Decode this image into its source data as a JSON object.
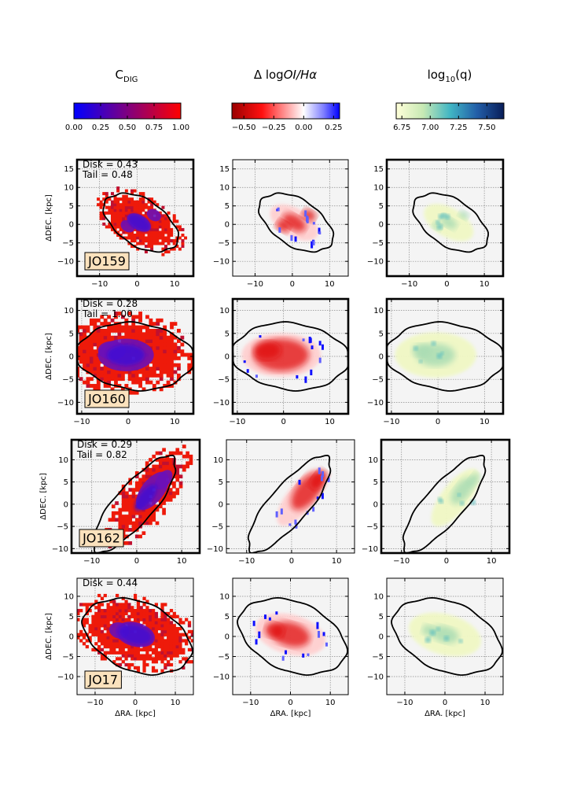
{
  "columns": [
    {
      "title_main": "C",
      "title_sub": "DIG",
      "cmap": "bluered",
      "colorbar_ticks": [
        "0.00",
        "0.25",
        "0.50",
        "0.75",
        "1.00"
      ],
      "colorbar_range": [
        0,
        1
      ],
      "tick_values": [
        0,
        0.25,
        0.5,
        0.75,
        1.0
      ]
    },
    {
      "title_main": "Δ log",
      "title_italic": "OI/Hα",
      "cmap": "redwhiteblue",
      "colorbar_ticks": [
        "−0.50",
        "−0.25",
        "0.00",
        "0.25"
      ],
      "colorbar_range": [
        -0.6,
        0.3
      ],
      "tick_values": [
        -0.5,
        -0.25,
        0.0,
        0.25
      ]
    },
    {
      "title_main": "log",
      "title_sub": "10",
      "title_rest": "(q)",
      "cmap": "ylgnbu",
      "colorbar_ticks": [
        "6.75",
        "7.00",
        "7.25",
        "7.50"
      ],
      "colorbar_range": [
        6.7,
        7.65
      ],
      "tick_values": [
        6.75,
        7.0,
        7.25,
        7.5
      ]
    }
  ],
  "chart_data": [
    {
      "type": "heatmap",
      "galaxy": "JO159",
      "ylabel": "ΔDEC. [kpc]",
      "xlabel": "",
      "xlim": [
        -16,
        15
      ],
      "ylim": [
        -14,
        17.5
      ],
      "xticks": [
        -10,
        0,
        10
      ],
      "yticks": [
        -10,
        -5,
        0,
        5,
        10,
        15
      ],
      "xtick_labels": [
        "−10",
        "0",
        "10"
      ],
      "ytick_labels": [
        "−10",
        "−5",
        "0",
        "5",
        "10",
        "15"
      ],
      "annotations": [
        "Disk = 0.43",
        "Tail = 0.48"
      ],
      "grid": true
    },
    {
      "type": "heatmap",
      "galaxy": "JO160",
      "ylabel": "ΔDEC. [kpc]",
      "xlabel": "",
      "xlim": [
        -11,
        14
      ],
      "ylim": [
        -12.5,
        12.5
      ],
      "xticks": [
        -10,
        0,
        10
      ],
      "yticks": [
        -10,
        -5,
        0,
        5,
        10
      ],
      "xtick_labels": [
        "−10",
        "0",
        "10"
      ],
      "ytick_labels": [
        "−10",
        "−5",
        "0",
        "5",
        "10"
      ],
      "annotations": [
        "Disk = 0.28",
        "Tail = 1.00"
      ],
      "grid": true
    },
    {
      "type": "heatmap",
      "galaxy": "JO162",
      "ylabel": "ΔDEC. [kpc]",
      "xlabel": "",
      "xlim": [
        -14.5,
        14
      ],
      "ylim": [
        -11,
        14.5
      ],
      "xticks": [
        -10,
        0,
        10
      ],
      "yticks": [
        -10,
        -5,
        0,
        5,
        10
      ],
      "xtick_labels": [
        "−10",
        "0",
        "10"
      ],
      "ytick_labels": [
        "−10",
        "−5",
        "0",
        "5",
        "10"
      ],
      "annotations": [
        "Disk = 0.29",
        "Tail = 0.82"
      ],
      "grid": true
    },
    {
      "type": "heatmap",
      "galaxy": "JO17",
      "ylabel": "ΔDEC. [kpc]",
      "xlabel": "ΔRA. [kpc]",
      "xlim": [
        -14.5,
        14.5
      ],
      "ylim": [
        -14.5,
        14.5
      ],
      "xticks": [
        -10,
        0,
        10
      ],
      "yticks": [
        -10,
        -5,
        0,
        5,
        10
      ],
      "xtick_labels": [
        "−10",
        "0",
        "10"
      ],
      "ytick_labels": [
        "−10",
        "−5",
        "0",
        "5",
        "10"
      ],
      "annotations": [
        "Disk = 0.44"
      ],
      "grid": true
    }
  ],
  "colors": {
    "axis_bg": "#f4f4f4",
    "grid": "#8a8a8a",
    "label_box": "#fbe2bd",
    "contour": "#000000",
    "spine": "#000000"
  }
}
